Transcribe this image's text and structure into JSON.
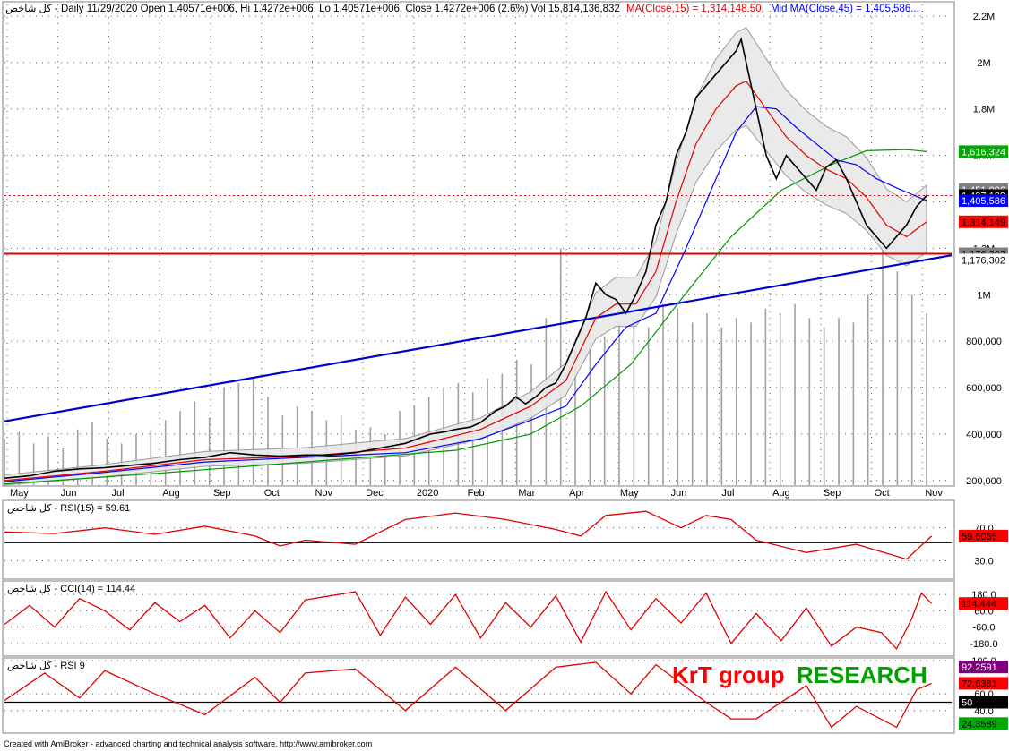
{
  "header": {
    "title": "کل شاخص - Daily 11/29/2020 Open 1.40571e+006, Hi 1.4272e+006, Lo 1.40571e+006, Close 1.4272e+006 (2.6%) Vol 15,814,136,832",
    "ma15": "MA(Close,15) = 1,314,148.50,",
    "ma45": "Mid MA(Close,45) = 1,405,586..."
  },
  "footer": "Created with AmiBroker - advanced charting and technical analysis software. http://www.amibroker.com",
  "watermark": {
    "part1": "KrT group",
    "part2": "RESEARCH",
    "color1": "#ff0000",
    "color2": "#00a000"
  },
  "colors": {
    "price": "#000000",
    "ma15": "#e00000",
    "ma45": "#0000ff",
    "ma200": "#009900",
    "trendline_blue": "#0000cc",
    "support_red": "#dd0000",
    "volume": "#a0a0a0",
    "bollinger": "#909090",
    "indicator": "#e00000"
  },
  "chart_data": [
    {
      "type": "line",
      "name": "price-panel",
      "x_labels": [
        "May",
        "Jun",
        "Jul",
        "Aug",
        "Sep",
        "Oct",
        "Nov",
        "Dec",
        "2020",
        "Feb",
        "Mar",
        "Apr",
        "May",
        "Jun",
        "Jul",
        "Aug",
        "Sep",
        "Oct",
        "Nov"
      ],
      "y_ticks": [
        "2.2M",
        "2M",
        "1.8M",
        "1.6M",
        "1.4M",
        "1.2M",
        "1M",
        "800,000",
        "600,000",
        "400,000",
        "200,000"
      ],
      "y_tick_values": [
        2200000,
        2000000,
        1800000,
        1600000,
        1400000,
        1200000,
        1000000,
        800000,
        600000,
        400000,
        200000
      ],
      "ylim": [
        180000,
        2250000
      ],
      "close_series": [
        [
          0,
          210000
        ],
        [
          5,
          220000
        ],
        [
          10,
          240000
        ],
        [
          15,
          250000
        ],
        [
          20,
          255000
        ],
        [
          25,
          265000
        ],
        [
          30,
          275000
        ],
        [
          35,
          290000
        ],
        [
          40,
          300000
        ],
        [
          45,
          320000
        ],
        [
          50,
          310000
        ],
        [
          55,
          305000
        ],
        [
          60,
          310000
        ],
        [
          65,
          310000
        ],
        [
          70,
          320000
        ],
        [
          75,
          340000
        ],
        [
          80,
          360000
        ],
        [
          85,
          400000
        ],
        [
          88,
          410000
        ],
        [
          90,
          420000
        ],
        [
          93,
          430000
        ],
        [
          95,
          450000
        ],
        [
          98,
          500000
        ],
        [
          100,
          520000
        ],
        [
          102,
          560000
        ],
        [
          104,
          530000
        ],
        [
          106,
          560000
        ],
        [
          108,
          600000
        ],
        [
          110,
          620000
        ],
        [
          112,
          700000
        ],
        [
          114,
          800000
        ],
        [
          116,
          900000
        ],
        [
          118,
          1050000
        ],
        [
          120,
          1000000
        ],
        [
          122,
          980000
        ],
        [
          124,
          920000
        ],
        [
          126,
          1000000
        ],
        [
          128,
          1100000
        ],
        [
          130,
          1300000
        ],
        [
          132,
          1400000
        ],
        [
          134,
          1600000
        ],
        [
          136,
          1700000
        ],
        [
          138,
          1850000
        ],
        [
          140,
          1900000
        ],
        [
          142,
          1950000
        ],
        [
          144,
          2000000
        ],
        [
          146,
          2050000
        ],
        [
          147,
          2100000
        ],
        [
          148,
          2000000
        ],
        [
          150,
          1800000
        ],
        [
          152,
          1600000
        ],
        [
          154,
          1500000
        ],
        [
          156,
          1600000
        ],
        [
          158,
          1550000
        ],
        [
          160,
          1500000
        ],
        [
          162,
          1450000
        ],
        [
          164,
          1550000
        ],
        [
          166,
          1580000
        ],
        [
          168,
          1500000
        ],
        [
          170,
          1400000
        ],
        [
          172,
          1300000
        ],
        [
          174,
          1250000
        ],
        [
          176,
          1200000
        ],
        [
          178,
          1250000
        ],
        [
          180,
          1300000
        ],
        [
          182,
          1380000
        ],
        [
          184,
          1427000
        ]
      ],
      "ma15_series": [
        [
          0,
          200000
        ],
        [
          20,
          240000
        ],
        [
          40,
          290000
        ],
        [
          60,
          305000
        ],
        [
          80,
          340000
        ],
        [
          95,
          420000
        ],
        [
          105,
          520000
        ],
        [
          112,
          630000
        ],
        [
          118,
          900000
        ],
        [
          122,
          960000
        ],
        [
          126,
          960000
        ],
        [
          130,
          1100000
        ],
        [
          134,
          1400000
        ],
        [
          138,
          1650000
        ],
        [
          142,
          1800000
        ],
        [
          146,
          1900000
        ],
        [
          148,
          1920000
        ],
        [
          152,
          1800000
        ],
        [
          156,
          1680000
        ],
        [
          160,
          1600000
        ],
        [
          164,
          1540000
        ],
        [
          168,
          1500000
        ],
        [
          172,
          1420000
        ],
        [
          176,
          1300000
        ],
        [
          180,
          1250000
        ],
        [
          184,
          1314149
        ]
      ],
      "ma45_series": [
        [
          0,
          195000
        ],
        [
          20,
          235000
        ],
        [
          40,
          280000
        ],
        [
          60,
          300000
        ],
        [
          80,
          320000
        ],
        [
          95,
          380000
        ],
        [
          105,
          460000
        ],
        [
          112,
          520000
        ],
        [
          118,
          700000
        ],
        [
          124,
          860000
        ],
        [
          130,
          920000
        ],
        [
          136,
          1200000
        ],
        [
          142,
          1500000
        ],
        [
          146,
          1700000
        ],
        [
          150,
          1810000
        ],
        [
          154,
          1800000
        ],
        [
          158,
          1720000
        ],
        [
          162,
          1650000
        ],
        [
          166,
          1580000
        ],
        [
          170,
          1560000
        ],
        [
          174,
          1500000
        ],
        [
          178,
          1460000
        ],
        [
          184,
          1405586
        ]
      ],
      "ma200_series": [
        [
          0,
          185000
        ],
        [
          30,
          230000
        ],
        [
          60,
          280000
        ],
        [
          90,
          330000
        ],
        [
          105,
          400000
        ],
        [
          115,
          520000
        ],
        [
          125,
          700000
        ],
        [
          135,
          980000
        ],
        [
          145,
          1250000
        ],
        [
          155,
          1450000
        ],
        [
          165,
          1560000
        ],
        [
          172,
          1620000
        ],
        [
          180,
          1625000
        ],
        [
          184,
          1616324
        ]
      ],
      "trendline_blue": [
        [
          0,
          455000
        ],
        [
          189,
          1170000
        ]
      ],
      "support_red": 1176302,
      "volume_bar_tops": [
        380000,
        410000,
        360000,
        390000,
        340000,
        420000,
        450000,
        380000,
        360000,
        400000,
        420000,
        460000,
        500000,
        540000,
        470000,
        600000,
        620000,
        640000,
        560000,
        480000,
        520000,
        500000,
        460000,
        480000,
        420000,
        430000,
        400000,
        500000,
        520000,
        560000,
        600000,
        620000,
        580000,
        640000,
        660000,
        720000,
        700000,
        900000,
        1200000,
        760000,
        880000,
        820000,
        880000,
        900000,
        860000,
        960000,
        940000,
        880000,
        920000,
        860000,
        900000,
        880000,
        940000,
        920000,
        960000,
        900000,
        860000,
        900000,
        880000,
        1000000,
        1200000,
        1100000,
        1000000,
        920000
      ],
      "right_tags": [
        {
          "label": "1,616,324",
          "value": 1616324,
          "bg": "#00aa00",
          "fg": "#ffffff"
        },
        {
          "label": "1,451,996",
          "value": 1451996,
          "bg": "#808080",
          "fg": "#ffffff"
        },
        {
          "label": "1,427,199",
          "value": 1427199,
          "bg": "#000000",
          "fg": "#ffffff"
        },
        {
          "label": "1,405,586",
          "value": 1405586,
          "bg": "#0000ff",
          "fg": "#ffffff"
        },
        {
          "label": "1,314,149",
          "value": 1314149,
          "bg": "#ff0000",
          "fg": "#000000"
        },
        {
          "label": "1,176,302",
          "value": 1176302,
          "bg": "#808080",
          "fg": "#000000"
        },
        {
          "label": "1,176,302",
          "value": 1150000,
          "bg": "#ffffff",
          "fg": "#000000"
        }
      ]
    },
    {
      "type": "line",
      "name": "rsi15-panel",
      "title": "کل شاخص - RSI(15) = 59.61",
      "y_ticks": [
        "70.0",
        "30.0"
      ],
      "y_tick_values": [
        70,
        30
      ],
      "ylim": [
        10,
        100
      ],
      "last_value": "59.6065",
      "series": [
        [
          0,
          65
        ],
        [
          10,
          63
        ],
        [
          20,
          70
        ],
        [
          30,
          62
        ],
        [
          40,
          72
        ],
        [
          50,
          60
        ],
        [
          55,
          48
        ],
        [
          60,
          55
        ],
        [
          70,
          50
        ],
        [
          80,
          80
        ],
        [
          90,
          88
        ],
        [
          100,
          80
        ],
        [
          110,
          68
        ],
        [
          115,
          60
        ],
        [
          120,
          85
        ],
        [
          128,
          90
        ],
        [
          135,
          70
        ],
        [
          140,
          85
        ],
        [
          145,
          80
        ],
        [
          150,
          55
        ],
        [
          160,
          40
        ],
        [
          170,
          50
        ],
        [
          180,
          32
        ],
        [
          185,
          60
        ]
      ],
      "flat_line": 52
    },
    {
      "type": "line",
      "name": "cci14-panel",
      "title": "کل شاخص - CCI(14) = 114.44",
      "y_ticks": [
        "180.0",
        "60.0",
        "-60.0",
        "-180.0"
      ],
      "y_tick_values": [
        180,
        60,
        -60,
        -180
      ],
      "ylim": [
        -260,
        260
      ],
      "last_value": "114.444",
      "series": [
        [
          0,
          -40
        ],
        [
          5,
          100
        ],
        [
          10,
          -60
        ],
        [
          15,
          150
        ],
        [
          20,
          60
        ],
        [
          25,
          -80
        ],
        [
          30,
          120
        ],
        [
          35,
          -20
        ],
        [
          40,
          100
        ],
        [
          45,
          -140
        ],
        [
          50,
          60
        ],
        [
          55,
          -100
        ],
        [
          60,
          140
        ],
        [
          70,
          200
        ],
        [
          75,
          -120
        ],
        [
          80,
          160
        ],
        [
          85,
          -40
        ],
        [
          90,
          180
        ],
        [
          95,
          -140
        ],
        [
          100,
          120
        ],
        [
          105,
          -60
        ],
        [
          110,
          170
        ],
        [
          115,
          -170
        ],
        [
          120,
          200
        ],
        [
          125,
          -80
        ],
        [
          130,
          150
        ],
        [
          135,
          -30
        ],
        [
          140,
          190
        ],
        [
          145,
          -180
        ],
        [
          150,
          40
        ],
        [
          155,
          -160
        ],
        [
          160,
          80
        ],
        [
          165,
          -200
        ],
        [
          170,
          -60
        ],
        [
          175,
          -100
        ],
        [
          178,
          -220
        ],
        [
          181,
          0
        ],
        [
          183,
          190
        ],
        [
          185,
          114
        ]
      ]
    },
    {
      "type": "line",
      "name": "rsi9-panel",
      "title": "کل شاخص - RSI 9",
      "y_ticks": [
        "100.0",
        "60.0",
        "50",
        "40.0"
      ],
      "y_tick_values": [
        100,
        60,
        50,
        40
      ],
      "ylim": [
        15,
        100
      ],
      "last_value": "72.6381",
      "series": [
        [
          0,
          52
        ],
        [
          8,
          85
        ],
        [
          15,
          55
        ],
        [
          20,
          88
        ],
        [
          30,
          60
        ],
        [
          40,
          35
        ],
        [
          50,
          80
        ],
        [
          55,
          50
        ],
        [
          60,
          85
        ],
        [
          70,
          90
        ],
        [
          80,
          40
        ],
        [
          90,
          92
        ],
        [
          100,
          40
        ],
        [
          110,
          92
        ],
        [
          118,
          98
        ],
        [
          125,
          60
        ],
        [
          130,
          95
        ],
        [
          140,
          50
        ],
        [
          145,
          30
        ],
        [
          150,
          30
        ],
        [
          160,
          70
        ],
        [
          165,
          20
        ],
        [
          170,
          45
        ],
        [
          178,
          20
        ],
        [
          182,
          65
        ],
        [
          185,
          72.6
        ]
      ],
      "flat_line": 50,
      "extra_tags": [
        {
          "label": "92.2591",
          "value": 92.2591,
          "bg": "#800080",
          "fg": "#ffffff"
        },
        {
          "label": "72.6381",
          "value": 72.6381,
          "bg": "#ff0000",
          "fg": "#000000"
        },
        {
          "label": "50",
          "value": 50,
          "bg": "#000000",
          "fg": "#ffffff"
        },
        {
          "label": "24.3589",
          "value": 24.3589,
          "bg": "#00aa00",
          "fg": "#000000"
        }
      ]
    }
  ]
}
